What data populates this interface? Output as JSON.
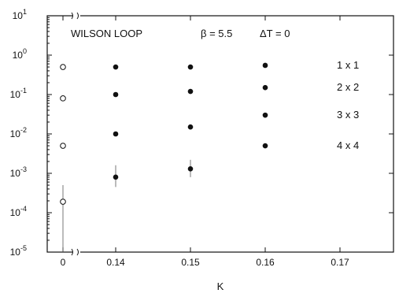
{
  "chart_data": {
    "type": "scatter",
    "title": "",
    "annotations": {
      "label": "WILSON LOOP",
      "beta": "β = 5.5",
      "delta_tau": "ΔT = 0"
    },
    "xlabel": "K",
    "ylabel": "",
    "yscale": "log",
    "axis_break_x": true,
    "xlim": [
      0.13,
      0.17
    ],
    "ylim": [
      1e-05,
      10
    ],
    "x_tick_labels": [
      "0",
      "0.14",
      "0.15",
      "0.16",
      "0.17"
    ],
    "y_ticks": [
      {
        "value": 10,
        "base": "10",
        "exp": "1"
      },
      {
        "value": 1,
        "base": "10",
        "exp": "0"
      },
      {
        "value": 0.1,
        "base": "10",
        "exp": "-1"
      },
      {
        "value": 0.01,
        "base": "10",
        "exp": "-2"
      },
      {
        "value": 0.001,
        "base": "10",
        "exp": "-3"
      },
      {
        "value": 0.0001,
        "base": "10",
        "exp": "-4"
      },
      {
        "value": 1e-05,
        "base": "10",
        "exp": "-5"
      }
    ],
    "series": [
      {
        "marker": "open-circle",
        "x": [
          0,
          0,
          0,
          0
        ],
        "y": [
          0.5,
          0.08,
          0.005,
          0.00019
        ],
        "err_lo": [
          null,
          null,
          null,
          1e-05
        ],
        "err_hi": [
          null,
          null,
          null,
          0.0005
        ]
      },
      {
        "marker": "filled-circle",
        "x": [
          0.14,
          0.14,
          0.14,
          0.14,
          0.15,
          0.15,
          0.15,
          0.15,
          0.16,
          0.16,
          0.16,
          0.16
        ],
        "y": [
          0.5,
          0.1,
          0.01,
          0.0008,
          0.5,
          0.12,
          0.015,
          0.0013,
          0.55,
          0.15,
          0.03,
          0.005
        ],
        "err_lo": [
          null,
          null,
          null,
          0.00045,
          null,
          null,
          null,
          0.0008,
          null,
          null,
          null,
          null
        ],
        "err_hi": [
          null,
          null,
          null,
          0.0016,
          null,
          null,
          null,
          0.0022,
          null,
          null,
          null,
          null
        ]
      }
    ],
    "legend": [
      {
        "label": "1 x 1",
        "y": 0.55
      },
      {
        "label": "2 x 2",
        "y": 0.15
      },
      {
        "label": "3 x 3",
        "y": 0.03
      },
      {
        "label": "4 x 4",
        "y": 0.005
      }
    ]
  }
}
